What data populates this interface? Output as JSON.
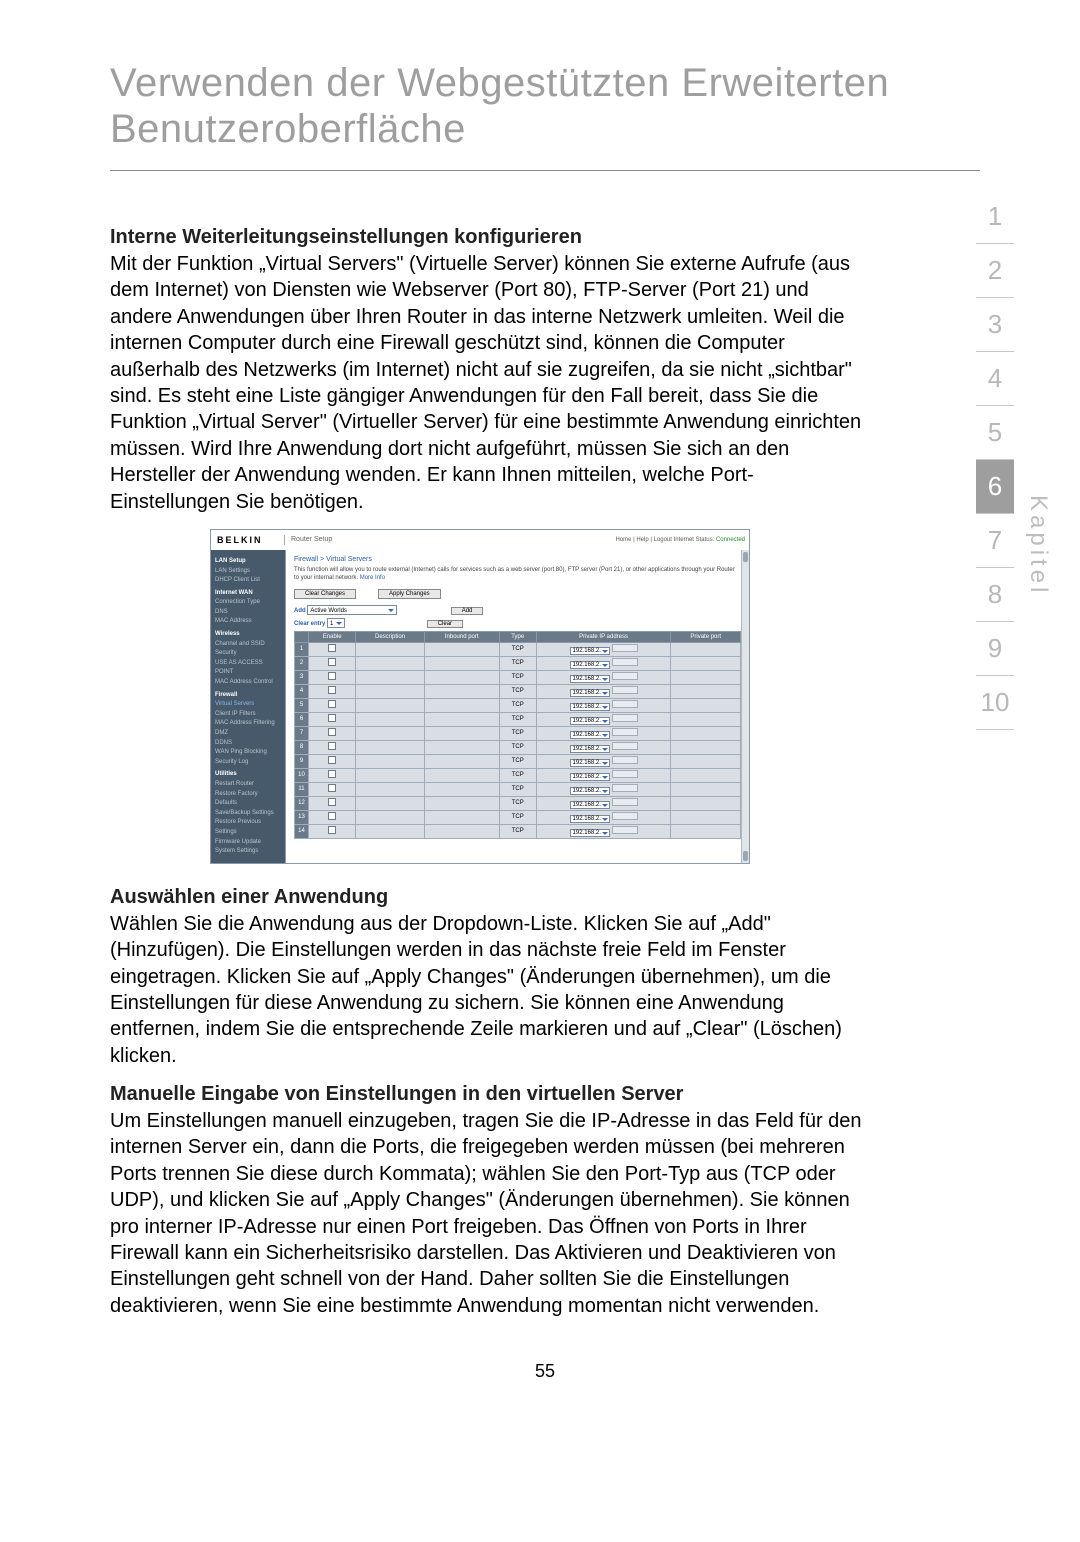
{
  "title": "Verwenden der Webgestützten Erweiterten Benutzeroberfläche",
  "page_number": "55",
  "kapitel_label": "Kapitel",
  "tabs": [
    "1",
    "2",
    "3",
    "4",
    "5",
    "6",
    "7",
    "8",
    "9",
    "10"
  ],
  "active_tab_index": 5,
  "sections": {
    "s1_heading": "Interne Weiterleitungseinstellungen konfigurieren",
    "s1_body": "Mit der Funktion „Virtual Servers\" (Virtuelle Server) können Sie externe Aufrufe (aus dem Internet) von Diensten wie Webserver (Port 80), FTP-Server (Port 21) und andere Anwendungen über Ihren Router in das interne Netzwerk umleiten. Weil die internen Computer durch eine Firewall geschützt sind, können die Computer außerhalb des Netzwerks (im Internet) nicht auf sie zugreifen, da sie nicht „sichtbar\" sind. Es steht eine Liste gängiger Anwendungen für den Fall bereit, dass Sie die Funktion „Virtual Server\" (Virtueller Server) für eine bestimmte Anwendung einrichten müssen. Wird Ihre Anwendung dort nicht aufgeführt, müssen Sie sich an den Hersteller der Anwendung wenden. Er kann Ihnen mitteilen, welche Port-Einstellungen Sie benötigen.",
    "s2_heading": "Auswählen einer Anwendung",
    "s2_body": "Wählen Sie die Anwendung aus der Dropdown-Liste. Klicken Sie auf „Add\" (Hinzufügen). Die Einstellungen werden in das nächste freie Feld im Fenster eingetragen. Klicken Sie auf „Apply Changes\" (Änderungen übernehmen), um die Einstellungen für diese Anwendung zu sichern. Sie können eine Anwendung entfernen, indem Sie die entsprechende Zeile markieren und auf „Clear\" (Löschen) klicken.",
    "s3_heading": "Manuelle Eingabe von Einstellungen in den virtuellen Server",
    "s3_body": "Um Einstellungen manuell einzugeben, tragen Sie die IP-Adresse in das Feld für den internen Server ein, dann die Ports, die freigegeben werden müssen (bei mehreren Ports trennen Sie diese durch Kommata); wählen Sie den Port-Typ aus (TCP oder UDP), und klicken Sie auf „Apply Changes\" (Änderungen übernehmen). Sie können pro interner IP-Adresse nur einen Port freigeben. Das Öffnen von Ports in Ihrer Firewall kann ein Sicherheitsrisiko darstellen. Das Aktivieren und Deaktivieren von Einstellungen geht schnell von der Hand. Daher sollten Sie die Einstellungen deaktivieren, wenn Sie eine bestimmte Anwendung momentan nicht verwenden."
  },
  "screenshot": {
    "logo": "BELKIN",
    "router_setup": "Router Setup",
    "top_links": "Home | Help | Logout   Internet Status:",
    "connected": "Connected",
    "nav": {
      "g1": "LAN Setup",
      "g1_items": [
        "LAN Settings",
        "DHCP Client List"
      ],
      "g2": "Internet WAN",
      "g2_items": [
        "Connection Type",
        "DNS",
        "MAC Address"
      ],
      "g3": "Wireless",
      "g3_items": [
        "Channel and SSID",
        "Security",
        "USE AS ACCESS POINT",
        "MAC Address Control"
      ],
      "g4": "Firewall",
      "g4_items": [
        "Virtual Servers",
        "Client IP Filters",
        "MAC Address Filtering",
        "DMZ",
        "DDNS",
        "WAN Ping Blocking",
        "Security Log"
      ],
      "g5": "Utilities",
      "g5_items": [
        "Restart Router",
        "Restore Factory Defaults",
        "Save/Backup Settings",
        "Restore Previous Settings",
        "Firmware Update",
        "System Settings"
      ]
    },
    "breadcrumb": "Firewall > Virtual Servers",
    "description": "This function will allow you to route external (Internet) calls for services such as a web server (port 80), FTP server (Port 21), or other applications through your Router to your internal network.",
    "more_info": "More Info",
    "btn_clear": "Clear Changes",
    "btn_apply": "Apply Changes",
    "add_label": "Add",
    "add_value": "Active Worlds",
    "btn_add": "Add",
    "clear_entry_label": "Clear entry",
    "clear_entry_value": "1",
    "btn_clear2": "Clear",
    "table": {
      "headers": [
        "",
        "Enable",
        "Description",
        "Inbound port",
        "Type",
        "Private IP address",
        "Private port"
      ],
      "type_value": "TCP",
      "ip_prefix": "192.168.2.",
      "row_count": 14
    },
    "colors": {
      "nav_bg": "#475a6b",
      "header_bg": "#6a7a88",
      "cell_bg": "#d8dee4",
      "link": "#2a5db0"
    }
  }
}
